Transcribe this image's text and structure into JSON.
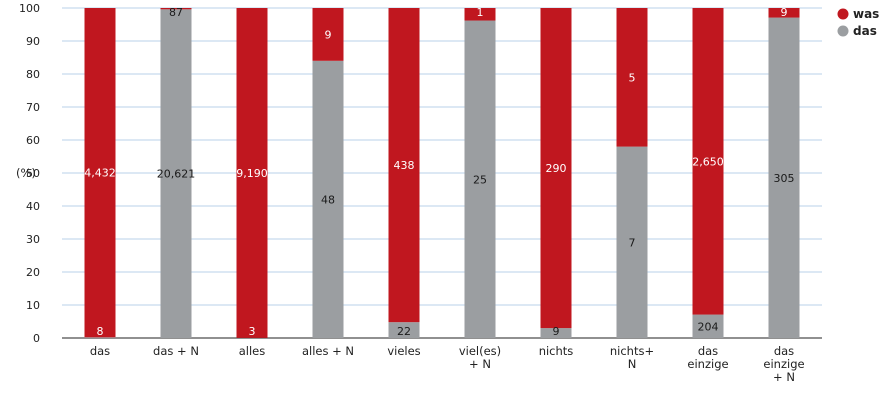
{
  "chart_data": {
    "type": "bar",
    "stacked": true,
    "normalized_percent": true,
    "ylabel": "(%)",
    "ylim": [
      0,
      100
    ],
    "yticks": [
      "0",
      "10",
      "20",
      "30",
      "40",
      "50",
      "60",
      "70",
      "80",
      "90",
      "100"
    ],
    "grid": true,
    "legend_position": "top-right",
    "categories": [
      [
        "das"
      ],
      [
        "das + N"
      ],
      [
        "alles"
      ],
      [
        "alles + N"
      ],
      [
        "vieles"
      ],
      [
        "viel(es)",
        "+ N"
      ],
      [
        "nichts"
      ],
      [
        "nichts+",
        "N"
      ],
      [
        "das",
        "einzige"
      ],
      [
        "das",
        "einzige",
        "+ N"
      ]
    ],
    "series": [
      {
        "name": "das",
        "color": "#9b9ea1",
        "percent": [
          0.2,
          99.6,
          0.03,
          84,
          4.8,
          96.2,
          3.0,
          58,
          7.1,
          97.1
        ],
        "labels": [
          "8",
          "20,621",
          "3",
          "48",
          "22",
          "25",
          "9",
          "7",
          "204",
          "305"
        ]
      },
      {
        "name": "was",
        "color": "#c0171f",
        "percent": [
          99.8,
          0.4,
          99.97,
          16,
          95.2,
          3.8,
          97.0,
          42,
          92.9,
          2.9
        ],
        "labels": [
          "4,432",
          "87",
          "9,190",
          "9",
          "438",
          "1",
          "290",
          "5",
          "2,650",
          "9"
        ]
      }
    ]
  }
}
